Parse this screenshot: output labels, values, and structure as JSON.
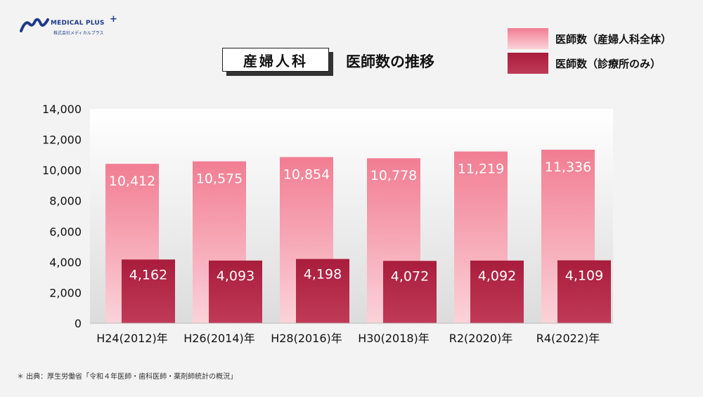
{
  "brand": {
    "name": "MEDICAL PLUS",
    "plus": "+",
    "tagline": "株式会社メディカルプラス"
  },
  "title": "産婦人科",
  "subtitle": "医師数の推移",
  "source": "＊ 出典：厚生労働省「令和４年医師・歯科医師・薬剤師統計の概況」",
  "colors": {
    "total": "#f48fa0",
    "clinic": "#b42645"
  },
  "chart_data": {
    "type": "bar",
    "categories": [
      "H24(2012)年",
      "H26(2014)年",
      "H28(2016)年",
      "H30(2018)年",
      "R2(2020)年",
      "R4(2022)年"
    ],
    "series": [
      {
        "name": "医師数（産婦人科全体）",
        "values": [
          10412,
          10575,
          10854,
          10778,
          11219,
          11336
        ],
        "labels": [
          "10,412",
          "10,575",
          "10,854",
          "10,778",
          "11,219",
          "11,336"
        ]
      },
      {
        "name": "医師数（診療所のみ）",
        "values": [
          4162,
          4093,
          4198,
          4072,
          4092,
          4109
        ],
        "labels": [
          "4,162",
          "4,093",
          "4,198",
          "4,072",
          "4,092",
          "4,109"
        ]
      }
    ],
    "yticks": [
      "0",
      "2,000",
      "4,000",
      "6,000",
      "8,000",
      "10,000",
      "12,000",
      "14,000"
    ],
    "ylim": [
      0,
      14000
    ],
    "grid": false,
    "legend": "top-right"
  }
}
